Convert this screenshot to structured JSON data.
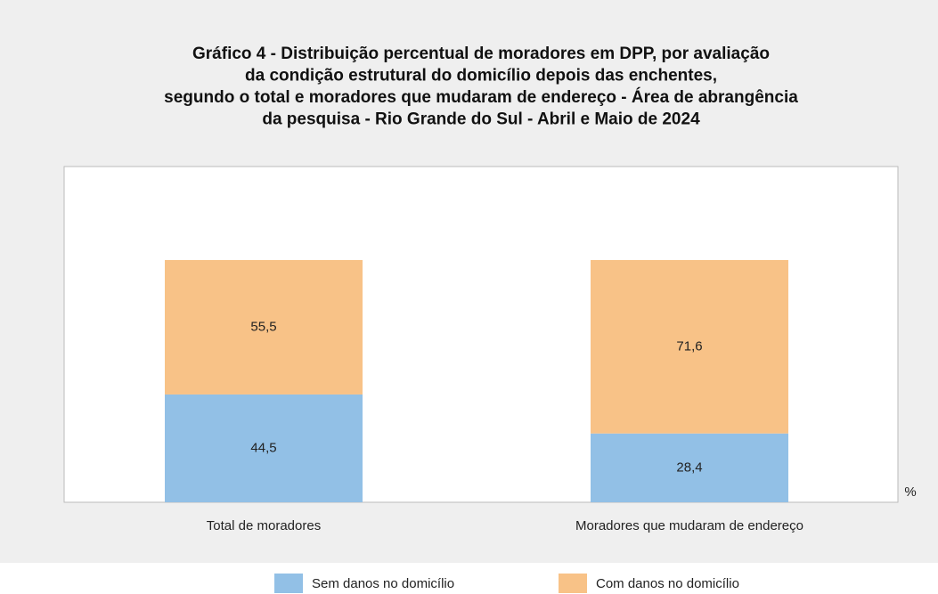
{
  "chart_data": {
    "type": "stacked_bar",
    "title": [
      "Gráfico 4 - Distribuição percentual de moradores em DPP, por avaliação",
      "da condição estrutural do domicílio depois das enchentes,",
      "segundo o total e moradores que mudaram de endereço - Área de abrangência",
      "da pesquisa - Rio Grande do Sul - Abril e Maio de 2024"
    ],
    "ylabel": "%",
    "categories": [
      "Total de moradores",
      "Moradores que mudaram de endereço"
    ],
    "series": [
      {
        "name": "Sem danos no domicílio",
        "color": "#92c0e6",
        "values": [
          44.5,
          28.4
        ],
        "value_labels": [
          "44,5",
          "28,4"
        ]
      },
      {
        "name": "Com danos no domicílio",
        "color": "#f8c287",
        "values": [
          55.5,
          71.6
        ],
        "value_labels": [
          "55,5",
          "71,6"
        ]
      }
    ],
    "ylim": [
      0,
      138.6
    ]
  }
}
